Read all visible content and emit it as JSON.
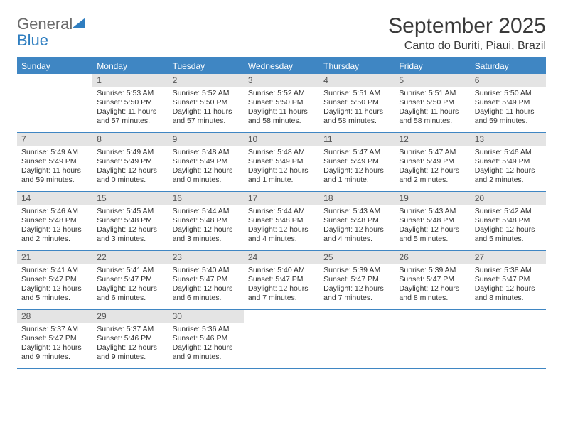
{
  "header": {
    "logo_general": "General",
    "logo_blue": "Blue",
    "month_title": "September 2025",
    "location": "Canto do Buriti, Piaui, Brazil"
  },
  "colors": {
    "accent": "#3f86c3",
    "daynum_bg": "#e4e4e4",
    "text": "#333333",
    "logo_gray": "#6b6b6b",
    "logo_blue": "#2f7ec0"
  },
  "days_of_week": [
    "Sunday",
    "Monday",
    "Tuesday",
    "Wednesday",
    "Thursday",
    "Friday",
    "Saturday"
  ],
  "weeks": [
    [
      {
        "n": "",
        "sr": "",
        "ss": "",
        "dl": ""
      },
      {
        "n": "1",
        "sr": "Sunrise: 5:53 AM",
        "ss": "Sunset: 5:50 PM",
        "dl": "Daylight: 11 hours and 57 minutes."
      },
      {
        "n": "2",
        "sr": "Sunrise: 5:52 AM",
        "ss": "Sunset: 5:50 PM",
        "dl": "Daylight: 11 hours and 57 minutes."
      },
      {
        "n": "3",
        "sr": "Sunrise: 5:52 AM",
        "ss": "Sunset: 5:50 PM",
        "dl": "Daylight: 11 hours and 58 minutes."
      },
      {
        "n": "4",
        "sr": "Sunrise: 5:51 AM",
        "ss": "Sunset: 5:50 PM",
        "dl": "Daylight: 11 hours and 58 minutes."
      },
      {
        "n": "5",
        "sr": "Sunrise: 5:51 AM",
        "ss": "Sunset: 5:50 PM",
        "dl": "Daylight: 11 hours and 58 minutes."
      },
      {
        "n": "6",
        "sr": "Sunrise: 5:50 AM",
        "ss": "Sunset: 5:49 PM",
        "dl": "Daylight: 11 hours and 59 minutes."
      }
    ],
    [
      {
        "n": "7",
        "sr": "Sunrise: 5:49 AM",
        "ss": "Sunset: 5:49 PM",
        "dl": "Daylight: 11 hours and 59 minutes."
      },
      {
        "n": "8",
        "sr": "Sunrise: 5:49 AM",
        "ss": "Sunset: 5:49 PM",
        "dl": "Daylight: 12 hours and 0 minutes."
      },
      {
        "n": "9",
        "sr": "Sunrise: 5:48 AM",
        "ss": "Sunset: 5:49 PM",
        "dl": "Daylight: 12 hours and 0 minutes."
      },
      {
        "n": "10",
        "sr": "Sunrise: 5:48 AM",
        "ss": "Sunset: 5:49 PM",
        "dl": "Daylight: 12 hours and 1 minute."
      },
      {
        "n": "11",
        "sr": "Sunrise: 5:47 AM",
        "ss": "Sunset: 5:49 PM",
        "dl": "Daylight: 12 hours and 1 minute."
      },
      {
        "n": "12",
        "sr": "Sunrise: 5:47 AM",
        "ss": "Sunset: 5:49 PM",
        "dl": "Daylight: 12 hours and 2 minutes."
      },
      {
        "n": "13",
        "sr": "Sunrise: 5:46 AM",
        "ss": "Sunset: 5:49 PM",
        "dl": "Daylight: 12 hours and 2 minutes."
      }
    ],
    [
      {
        "n": "14",
        "sr": "Sunrise: 5:46 AM",
        "ss": "Sunset: 5:48 PM",
        "dl": "Daylight: 12 hours and 2 minutes."
      },
      {
        "n": "15",
        "sr": "Sunrise: 5:45 AM",
        "ss": "Sunset: 5:48 PM",
        "dl": "Daylight: 12 hours and 3 minutes."
      },
      {
        "n": "16",
        "sr": "Sunrise: 5:44 AM",
        "ss": "Sunset: 5:48 PM",
        "dl": "Daylight: 12 hours and 3 minutes."
      },
      {
        "n": "17",
        "sr": "Sunrise: 5:44 AM",
        "ss": "Sunset: 5:48 PM",
        "dl": "Daylight: 12 hours and 4 minutes."
      },
      {
        "n": "18",
        "sr": "Sunrise: 5:43 AM",
        "ss": "Sunset: 5:48 PM",
        "dl": "Daylight: 12 hours and 4 minutes."
      },
      {
        "n": "19",
        "sr": "Sunrise: 5:43 AM",
        "ss": "Sunset: 5:48 PM",
        "dl": "Daylight: 12 hours and 5 minutes."
      },
      {
        "n": "20",
        "sr": "Sunrise: 5:42 AM",
        "ss": "Sunset: 5:48 PM",
        "dl": "Daylight: 12 hours and 5 minutes."
      }
    ],
    [
      {
        "n": "21",
        "sr": "Sunrise: 5:41 AM",
        "ss": "Sunset: 5:47 PM",
        "dl": "Daylight: 12 hours and 5 minutes."
      },
      {
        "n": "22",
        "sr": "Sunrise: 5:41 AM",
        "ss": "Sunset: 5:47 PM",
        "dl": "Daylight: 12 hours and 6 minutes."
      },
      {
        "n": "23",
        "sr": "Sunrise: 5:40 AM",
        "ss": "Sunset: 5:47 PM",
        "dl": "Daylight: 12 hours and 6 minutes."
      },
      {
        "n": "24",
        "sr": "Sunrise: 5:40 AM",
        "ss": "Sunset: 5:47 PM",
        "dl": "Daylight: 12 hours and 7 minutes."
      },
      {
        "n": "25",
        "sr": "Sunrise: 5:39 AM",
        "ss": "Sunset: 5:47 PM",
        "dl": "Daylight: 12 hours and 7 minutes."
      },
      {
        "n": "26",
        "sr": "Sunrise: 5:39 AM",
        "ss": "Sunset: 5:47 PM",
        "dl": "Daylight: 12 hours and 8 minutes."
      },
      {
        "n": "27",
        "sr": "Sunrise: 5:38 AM",
        "ss": "Sunset: 5:47 PM",
        "dl": "Daylight: 12 hours and 8 minutes."
      }
    ],
    [
      {
        "n": "28",
        "sr": "Sunrise: 5:37 AM",
        "ss": "Sunset: 5:47 PM",
        "dl": "Daylight: 12 hours and 9 minutes."
      },
      {
        "n": "29",
        "sr": "Sunrise: 5:37 AM",
        "ss": "Sunset: 5:46 PM",
        "dl": "Daylight: 12 hours and 9 minutes."
      },
      {
        "n": "30",
        "sr": "Sunrise: 5:36 AM",
        "ss": "Sunset: 5:46 PM",
        "dl": "Daylight: 12 hours and 9 minutes."
      },
      {
        "n": "",
        "sr": "",
        "ss": "",
        "dl": ""
      },
      {
        "n": "",
        "sr": "",
        "ss": "",
        "dl": ""
      },
      {
        "n": "",
        "sr": "",
        "ss": "",
        "dl": ""
      },
      {
        "n": "",
        "sr": "",
        "ss": "",
        "dl": ""
      }
    ]
  ]
}
